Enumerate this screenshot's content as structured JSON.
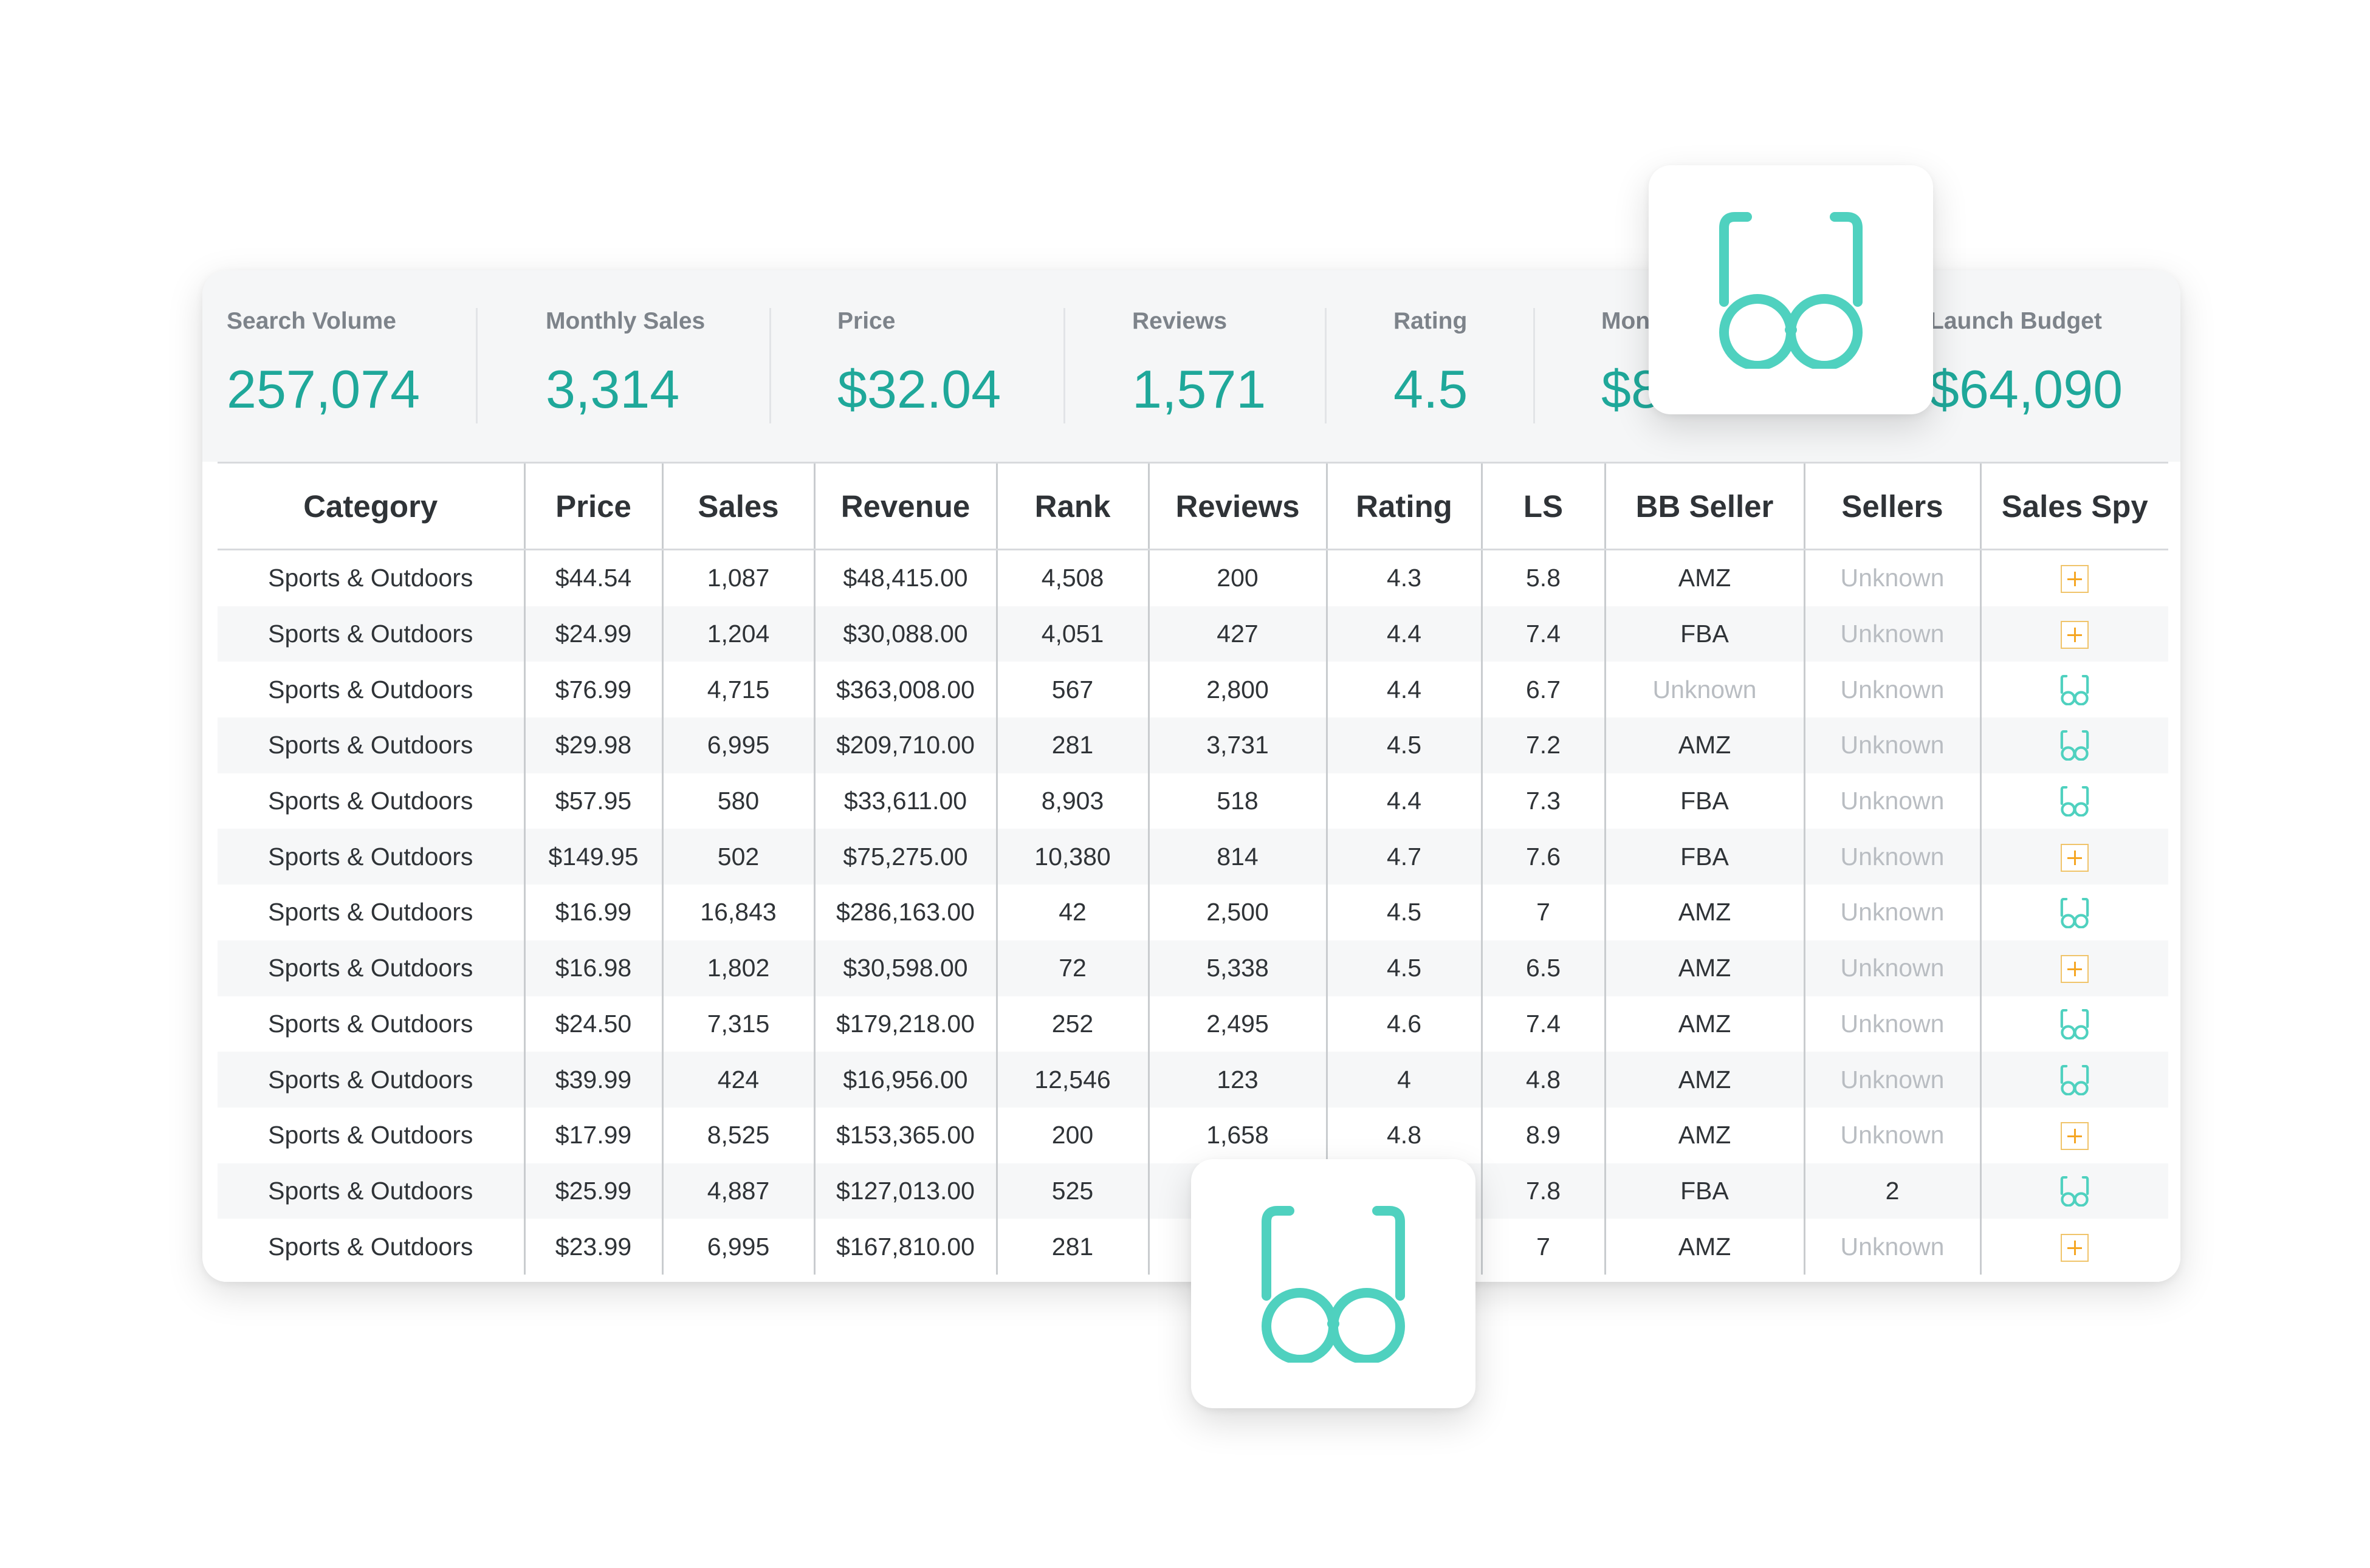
{
  "stats": [
    {
      "label": "Search Volume",
      "value": "257,074"
    },
    {
      "label": "Monthly Sales",
      "value": "3,314"
    },
    {
      "label": "Price",
      "value": "$32.04"
    },
    {
      "label": "Reviews",
      "value": "1,571"
    },
    {
      "label": "Rating",
      "value": "4.5"
    },
    {
      "label": "Mon",
      "value": "$8"
    },
    {
      "label": "Launch Budget",
      "value": "$64,090"
    }
  ],
  "table": {
    "columns": [
      "Category",
      "Price",
      "Sales",
      "Revenue",
      "Rank",
      "Reviews",
      "Rating",
      "LS",
      "BB Seller",
      "Sellers",
      "Sales Spy"
    ],
    "rows": [
      {
        "category": "Sports & Outdoors",
        "price": "$44.54",
        "sales": "1,087",
        "revenue": "$48,415.00",
        "rank": "4,508",
        "reviews": "200",
        "rating": "4.3",
        "ls": "5.8",
        "bb_seller": "AMZ",
        "sellers": "Unknown",
        "spy": "plus"
      },
      {
        "category": "Sports & Outdoors",
        "price": "$24.99",
        "sales": "1,204",
        "revenue": "$30,088.00",
        "rank": "4,051",
        "reviews": "427",
        "rating": "4.4",
        "ls": "7.4",
        "bb_seller": "FBA",
        "sellers": "Unknown",
        "spy": "plus"
      },
      {
        "category": "Sports & Outdoors",
        "price": "$76.99",
        "sales": "4,715",
        "revenue": "$363,008.00",
        "rank": "567",
        "reviews": "2,800",
        "rating": "4.4",
        "ls": "6.7",
        "bb_seller": "Unknown",
        "sellers": "Unknown",
        "spy": "glasses"
      },
      {
        "category": "Sports & Outdoors",
        "price": "$29.98",
        "sales": "6,995",
        "revenue": "$209,710.00",
        "rank": "281",
        "reviews": "3,731",
        "rating": "4.5",
        "ls": "7.2",
        "bb_seller": "AMZ",
        "sellers": "Unknown",
        "spy": "glasses"
      },
      {
        "category": "Sports & Outdoors",
        "price": "$57.95",
        "sales": "580",
        "revenue": "$33,611.00",
        "rank": "8,903",
        "reviews": "518",
        "rating": "4.4",
        "ls": "7.3",
        "bb_seller": "FBA",
        "sellers": "Unknown",
        "spy": "glasses"
      },
      {
        "category": "Sports & Outdoors",
        "price": "$149.95",
        "sales": "502",
        "revenue": "$75,275.00",
        "rank": "10,380",
        "reviews": "814",
        "rating": "4.7",
        "ls": "7.6",
        "bb_seller": "FBA",
        "sellers": "Unknown",
        "spy": "plus"
      },
      {
        "category": "Sports & Outdoors",
        "price": "$16.99",
        "sales": "16,843",
        "revenue": "$286,163.00",
        "rank": "42",
        "reviews": "2,500",
        "rating": "4.5",
        "ls": "7",
        "bb_seller": "AMZ",
        "sellers": "Unknown",
        "spy": "glasses"
      },
      {
        "category": "Sports & Outdoors",
        "price": "$16.98",
        "sales": "1,802",
        "revenue": "$30,598.00",
        "rank": "72",
        "reviews": "5,338",
        "rating": "4.5",
        "ls": "6.5",
        "bb_seller": "AMZ",
        "sellers": "Unknown",
        "spy": "plus"
      },
      {
        "category": "Sports & Outdoors",
        "price": "$24.50",
        "sales": "7,315",
        "revenue": "$179,218.00",
        "rank": "252",
        "reviews": "2,495",
        "rating": "4.6",
        "ls": "7.4",
        "bb_seller": "AMZ",
        "sellers": "Unknown",
        "spy": "glasses"
      },
      {
        "category": "Sports & Outdoors",
        "price": "$39.99",
        "sales": "424",
        "revenue": "$16,956.00",
        "rank": "12,546",
        "reviews": "123",
        "rating": "4",
        "ls": "4.8",
        "bb_seller": "AMZ",
        "sellers": "Unknown",
        "spy": "glasses"
      },
      {
        "category": "Sports & Outdoors",
        "price": "$17.99",
        "sales": "8,525",
        "revenue": "$153,365.00",
        "rank": "200",
        "reviews": "1,658",
        "rating": "4.8",
        "ls": "8.9",
        "bb_seller": "AMZ",
        "sellers": "Unknown",
        "spy": "plus"
      },
      {
        "category": "Sports & Outdoors",
        "price": "$25.99",
        "sales": "4,887",
        "revenue": "$127,013.00",
        "rank": "525",
        "reviews": "",
        "rating": "",
        "ls": "7.8",
        "bb_seller": "FBA",
        "sellers": "2",
        "spy": "glasses"
      },
      {
        "category": "Sports & Outdoors",
        "price": "$23.99",
        "sales": "6,995",
        "revenue": "$167,810.00",
        "rank": "281",
        "reviews": "",
        "rating": "",
        "ls": "7",
        "bb_seller": "AMZ",
        "sellers": "Unknown",
        "spy": "plus"
      }
    ]
  },
  "icons": {
    "plus": "plus-square-icon",
    "glasses": "glasses-icon"
  },
  "colors": {
    "accent_teal": "#1fa89a",
    "icon_teal": "#4fd1bf",
    "plus_orange": "#f5a623",
    "muted_text": "#b9bdc2"
  }
}
